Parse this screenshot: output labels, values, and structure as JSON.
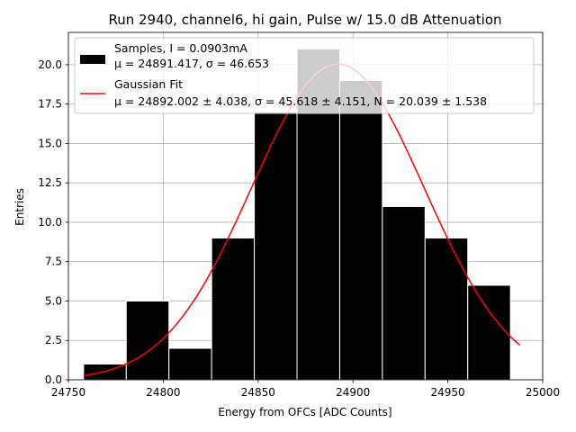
{
  "chart_data": {
    "type": "bar",
    "title": "Run 2940, channel6, hi gain, Pulse w/ 15.0 dB Attenuation",
    "xlabel": "Energy from OFCs [ADC Counts]",
    "ylabel": "Entries",
    "xlim": [
      24750,
      25000
    ],
    "ylim": [
      0,
      22.05
    ],
    "xticks": [
      "24750",
      "24800",
      "24850",
      "24900",
      "24950",
      "25000"
    ],
    "yticks": [
      "0.0",
      "2.5",
      "5.0",
      "7.5",
      "10.0",
      "12.5",
      "15.0",
      "17.5",
      "20.0"
    ],
    "grid": true,
    "legend_position": "upper-left",
    "histogram": {
      "name": "Samples, I = 0.0903mA",
      "stats_label": "μ = 24891.417, σ = 46.653",
      "color": "#000000",
      "bins": [
        {
          "left": 24758.0,
          "right": 24780.5,
          "count": 1
        },
        {
          "left": 24780.5,
          "right": 24803.0,
          "count": 5
        },
        {
          "left": 24803.0,
          "right": 24825.5,
          "count": 2
        },
        {
          "left": 24825.5,
          "right": 24848.0,
          "count": 9
        },
        {
          "left": 24848.0,
          "right": 24870.5,
          "count": 17
        },
        {
          "left": 24870.5,
          "right": 24893.0,
          "count": 21
        },
        {
          "left": 24893.0,
          "right": 24915.5,
          "count": 19
        },
        {
          "left": 24915.5,
          "right": 24938.0,
          "count": 11
        },
        {
          "left": 24938.0,
          "right": 24960.5,
          "count": 9
        },
        {
          "left": 24960.5,
          "right": 24983.0,
          "count": 6
        }
      ]
    },
    "fit": {
      "name": "Gaussian Fit",
      "stats_label": "μ = 24892.002 ± 4.038, σ = 45.618 ± 4.151, N = 20.039 ± 1.538",
      "color": "#ff0000",
      "mu": 24892.002,
      "sigma": 45.618,
      "N": 20.039,
      "x_range": [
        24758.0,
        24988.0
      ]
    }
  }
}
